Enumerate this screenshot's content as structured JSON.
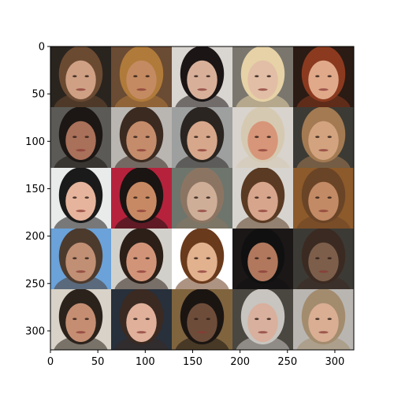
{
  "chart_data": {
    "type": "image",
    "xlim": [
      0,
      320
    ],
    "ylim": [
      320,
      0
    ],
    "x_ticks": [
      0,
      50,
      100,
      150,
      200,
      250,
      300
    ],
    "y_ticks": [
      0,
      50,
      100,
      150,
      200,
      250,
      300
    ],
    "x_tick_labels": [
      "0",
      "50",
      "100",
      "150",
      "200",
      "250",
      "300"
    ],
    "y_tick_labels": [
      "0",
      "50",
      "100",
      "150",
      "200",
      "250",
      "300"
    ],
    "grid": {
      "rows": 5,
      "cols": 5,
      "tile_size": 64
    },
    "tiles": [
      {
        "row": 0,
        "col": 0,
        "bg": "#2a241f",
        "skin": "#cfa084",
        "hair": "#6b4a32"
      },
      {
        "row": 0,
        "col": 1,
        "bg": "#6a4b33",
        "skin": "#c48a61",
        "hair": "#b07a3a"
      },
      {
        "row": 0,
        "col": 2,
        "bg": "#d9d5d0",
        "skin": "#d8b09a",
        "hair": "#1b1515"
      },
      {
        "row": 0,
        "col": 3,
        "bg": "#7a766e",
        "skin": "#e2bea6",
        "hair": "#e6d2a6"
      },
      {
        "row": 0,
        "col": 4,
        "bg": "#2a1b14",
        "skin": "#e0a98a",
        "hair": "#8b3a1f"
      },
      {
        "row": 1,
        "col": 0,
        "bg": "#5b5a56",
        "skin": "#a9705a",
        "hair": "#1c1714"
      },
      {
        "row": 1,
        "col": 1,
        "bg": "#b9b6b2",
        "skin": "#c48c6b",
        "hair": "#3b2a20"
      },
      {
        "row": 1,
        "col": 2,
        "bg": "#9ea0a0",
        "skin": "#d7a78b",
        "hair": "#2a2520"
      },
      {
        "row": 1,
        "col": 3,
        "bg": "#d8d3cc",
        "skin": "#d79679",
        "hair": "#d6c9b2"
      },
      {
        "row": 1,
        "col": 4,
        "bg": "#3c3a34",
        "skin": "#d3a37f",
        "hair": "#a37a52"
      },
      {
        "row": 2,
        "col": 0,
        "bg": "#e9eaea",
        "skin": "#e6b49c",
        "hair": "#1b1a1a"
      },
      {
        "row": 2,
        "col": 1,
        "bg": "#b6223c",
        "skin": "#c78963",
        "hair": "#1a1412"
      },
      {
        "row": 2,
        "col": 2,
        "bg": "#6e756c",
        "skin": "#cfae98",
        "hair": "#8b7562"
      },
      {
        "row": 2,
        "col": 3,
        "bg": "#d7d4cf",
        "skin": "#d7a58b",
        "hair": "#5a3a23"
      },
      {
        "row": 2,
        "col": 4,
        "bg": "#8c5a2b",
        "skin": "#c28a65",
        "hair": "#6a4426"
      },
      {
        "row": 3,
        "col": 0,
        "bg": "#6aa2d9",
        "skin": "#c08f74",
        "hair": "#4c3a2d"
      },
      {
        "row": 3,
        "col": 1,
        "bg": "#d2d0ca",
        "skin": "#d29479",
        "hair": "#2b1f18"
      },
      {
        "row": 3,
        "col": 2,
        "bg": "#ffffff",
        "skin": "#e2b18e",
        "hair": "#6a3a1c"
      },
      {
        "row": 3,
        "col": 3,
        "bg": "#1b1717",
        "skin": "#b1785d",
        "hair": "#101010"
      },
      {
        "row": 3,
        "col": 4,
        "bg": "#3c3a34",
        "skin": "#7c5e4a",
        "hair": "#3a2a22"
      },
      {
        "row": 4,
        "col": 0,
        "bg": "#d8d2c8",
        "skin": "#c58e72",
        "hair": "#2b221c"
      },
      {
        "row": 4,
        "col": 1,
        "bg": "#27303b",
        "skin": "#e0b09a",
        "hair": "#3a2a22"
      },
      {
        "row": 4,
        "col": 2,
        "bg": "#7f643e",
        "skin": "#6d4d3a",
        "hair": "#1b1512"
      },
      {
        "row": 4,
        "col": 3,
        "bg": "#4a4640",
        "skin": "#d8b09d",
        "hair": "#c8c4bf"
      },
      {
        "row": 4,
        "col": 4,
        "bg": "#b9b6b2",
        "skin": "#d9ae93",
        "hair": "#a38c6e"
      }
    ]
  }
}
